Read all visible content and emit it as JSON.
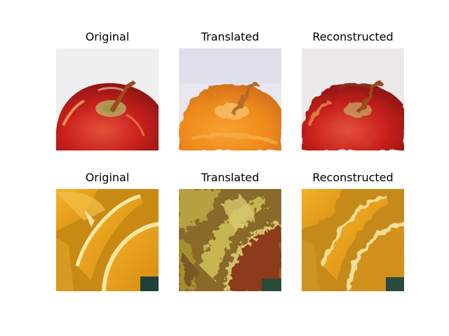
{
  "figure": {
    "rows": [
      {
        "subject": "apple",
        "panels": [
          {
            "title": "Original"
          },
          {
            "title": "Translated"
          },
          {
            "title": "Reconstructed"
          }
        ]
      },
      {
        "subject": "orange",
        "panels": [
          {
            "title": "Original"
          },
          {
            "title": "Translated"
          },
          {
            "title": "Reconstructed"
          }
        ]
      }
    ]
  }
}
